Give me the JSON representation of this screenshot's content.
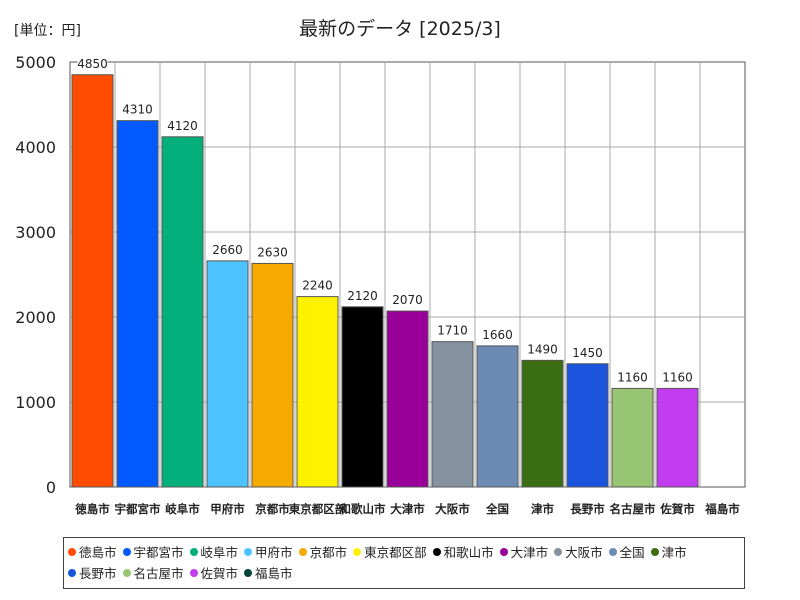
{
  "chart_data": {
    "type": "bar",
    "title": "最新のデータ [2025/3]",
    "unit_label": "[単位：円]",
    "ylim": [
      0,
      5000
    ],
    "yticks": [
      0,
      1000,
      2000,
      3000,
      4000,
      5000
    ],
    "grid": true,
    "legend_position": "bottom",
    "categories": [
      "徳島市",
      "宇都宮市",
      "岐阜市",
      "甲府市",
      "京都市",
      "東京都区部",
      "和歌山市",
      "大津市",
      "大阪市",
      "全国",
      "津市",
      "長野市",
      "名古屋市",
      "佐賀市",
      "福島市"
    ],
    "values": [
      4850,
      4310,
      4120,
      2660,
      2630,
      2240,
      2120,
      2070,
      1710,
      1660,
      1490,
      1450,
      1160,
      1160,
      null
    ],
    "value_labels": [
      "4850",
      "4310",
      "4120",
      "2660",
      "2630",
      "2240",
      "2120",
      "2070",
      "1710",
      "1660",
      "1490",
      "1450",
      "1160",
      "1160",
      ""
    ],
    "colors": [
      "#ff4c00",
      "#005aff",
      "#03af7a",
      "#4dc4ff",
      "#f6aa00",
      "#fff100",
      "#000000",
      "#990099",
      "#84919e",
      "#6d8ab4",
      "#3b6e13",
      "#1a53dc",
      "#97c573",
      "#c23cf0",
      "#05443a"
    ]
  }
}
